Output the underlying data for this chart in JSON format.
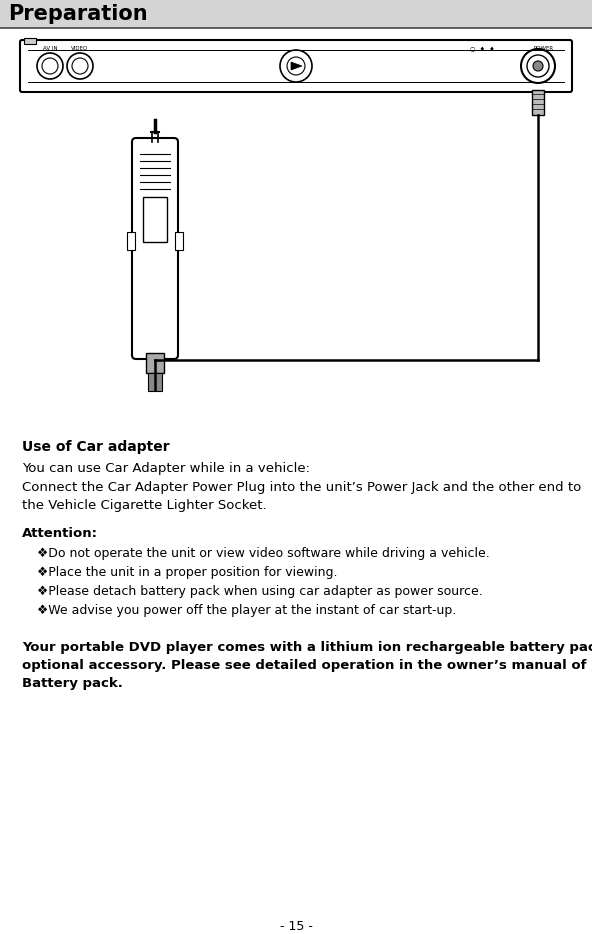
{
  "title": "Preparation",
  "title_bg_color": "#d4d4d4",
  "page_bg_color": "#ffffff",
  "title_fontsize": 15,
  "title_font_weight": "bold",
  "section_heading": "Use of Car adapter",
  "para1": "You can use Car Adapter while in a vehicle:",
  "para2_line1": "Connect the Car Adapter Power Plug into the unit’s Power Jack and the other end to",
  "para2_line2": "the Vehicle Cigarette Lighter Socket.",
  "attention_heading": "Attention:",
  "bullets": [
    "❖Do not operate the unit or view video software while driving a vehicle.",
    "❖Place the unit in a proper position for viewing.",
    "❖Please detach battery pack when using car adapter as power source.",
    "❖We advise you power off the player at the instant of car start-up."
  ],
  "bold_para_line1": "Your portable DVD player comes with a lithium ion rechargeable battery pack as",
  "bold_para_line2": "optional accessory. Please see detailed operation in the owner’s manual of",
  "bold_para_line3": "Battery pack.",
  "page_number": "- 15 -",
  "text_color": "#000000",
  "bg_color": "#ffffff"
}
